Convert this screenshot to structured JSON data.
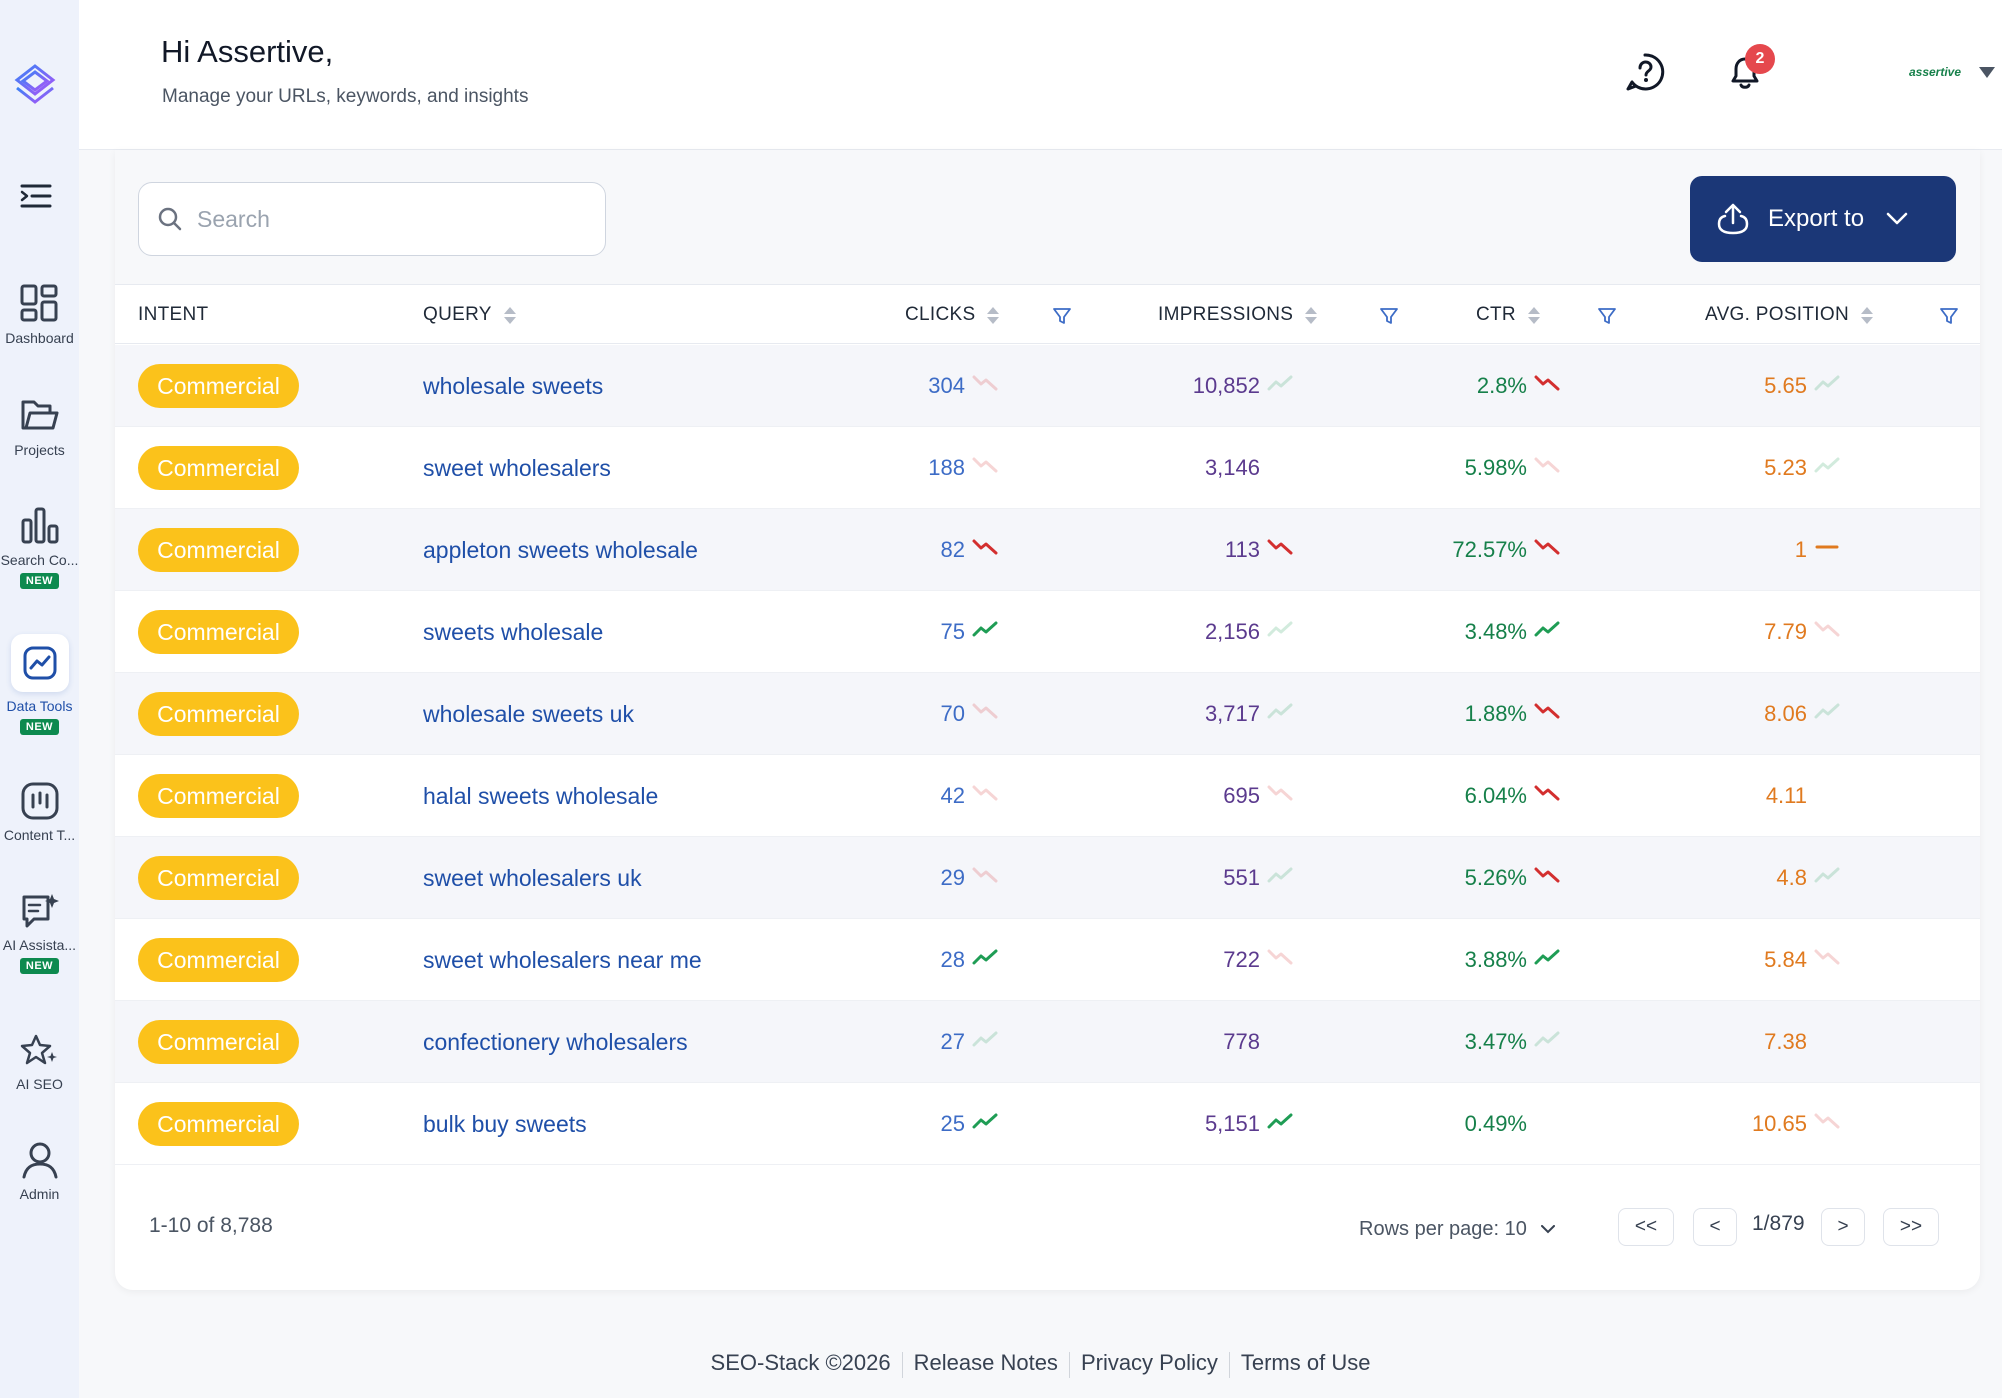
{
  "header": {
    "greeting": "Hi Assertive,",
    "subtitle": "Manage your URLs, keywords, and insights",
    "notification_count": "2",
    "account_label": "assertive"
  },
  "sidebar": {
    "items": [
      {
        "label": "Dashboard",
        "icon": "dashboard-icon",
        "badge": ""
      },
      {
        "label": "Projects",
        "icon": "folder-icon",
        "badge": ""
      },
      {
        "label": "Search Co...",
        "icon": "bar-chart-icon",
        "badge": "NEW"
      },
      {
        "label": "Data Tools",
        "icon": "trend-chart-icon",
        "badge": "NEW",
        "active": true
      },
      {
        "label": "Content T...",
        "icon": "content-icon",
        "badge": ""
      },
      {
        "label": "AI Assista...",
        "icon": "chat-sparkle-icon",
        "badge": "NEW"
      },
      {
        "label": "AI SEO",
        "icon": "star-sparkle-icon",
        "badge": ""
      },
      {
        "label": "Admin",
        "icon": "user-icon",
        "badge": ""
      }
    ]
  },
  "toolbar": {
    "search_placeholder": "Search",
    "export_label": "Export to"
  },
  "table": {
    "columns": [
      "INTENT",
      "QUERY",
      "CLICKS",
      "IMPRESSIONS",
      "CTR",
      "AVG. POSITION"
    ],
    "rows": [
      {
        "intent": "Commercial",
        "query": "wholesale sweets",
        "clicks": "304",
        "clicks_trend": "down-faint",
        "impressions": "10,852",
        "impressions_trend": "up-faint",
        "ctr": "2.8%",
        "ctr_trend": "down",
        "position": "5.65",
        "position_trend": "up-faint"
      },
      {
        "intent": "Commercial",
        "query": "sweet wholesalers",
        "clicks": "188",
        "clicks_trend": "down-faint",
        "impressions": "3,146",
        "impressions_trend": "none",
        "ctr": "5.98%",
        "ctr_trend": "down-faint",
        "position": "5.23",
        "position_trend": "up-faint"
      },
      {
        "intent": "Commercial",
        "query": "appleton sweets wholesale",
        "clicks": "82",
        "clicks_trend": "down",
        "impressions": "113",
        "impressions_trend": "down",
        "ctr": "72.57%",
        "ctr_trend": "down",
        "position": "1",
        "position_trend": "flat"
      },
      {
        "intent": "Commercial",
        "query": "sweets wholesale",
        "clicks": "75",
        "clicks_trend": "up",
        "impressions": "2,156",
        "impressions_trend": "up-faint",
        "ctr": "3.48%",
        "ctr_trend": "up",
        "position": "7.79",
        "position_trend": "down-faint"
      },
      {
        "intent": "Commercial",
        "query": "wholesale sweets uk",
        "clicks": "70",
        "clicks_trend": "down-faint",
        "impressions": "3,717",
        "impressions_trend": "up-faint",
        "ctr": "1.88%",
        "ctr_trend": "down",
        "position": "8.06",
        "position_trend": "up-faint"
      },
      {
        "intent": "Commercial",
        "query": "halal sweets wholesale",
        "clicks": "42",
        "clicks_trend": "down-faint",
        "impressions": "695",
        "impressions_trend": "down-faint",
        "ctr": "6.04%",
        "ctr_trend": "down",
        "position": "4.11",
        "position_trend": "none"
      },
      {
        "intent": "Commercial",
        "query": "sweet wholesalers uk",
        "clicks": "29",
        "clicks_trend": "down-faint",
        "impressions": "551",
        "impressions_trend": "up-faint",
        "ctr": "5.26%",
        "ctr_trend": "down",
        "position": "4.8",
        "position_trend": "up-faint"
      },
      {
        "intent": "Commercial",
        "query": "sweet wholesalers near me",
        "clicks": "28",
        "clicks_trend": "up",
        "impressions": "722",
        "impressions_trend": "down-faint",
        "ctr": "3.88%",
        "ctr_trend": "up",
        "position": "5.84",
        "position_trend": "down-faint"
      },
      {
        "intent": "Commercial",
        "query": "confectionery wholesalers",
        "clicks": "27",
        "clicks_trend": "up-faint",
        "impressions": "778",
        "impressions_trend": "none",
        "ctr": "3.47%",
        "ctr_trend": "up-faint",
        "position": "7.38",
        "position_trend": "none"
      },
      {
        "intent": "Commercial",
        "query": "bulk buy sweets",
        "clicks": "25",
        "clicks_trend": "up",
        "impressions": "5,151",
        "impressions_trend": "up",
        "ctr": "0.49%",
        "ctr_trend": "none",
        "position": "10.65",
        "position_trend": "down-faint"
      }
    ]
  },
  "pagination": {
    "range": "1-10 of 8,788",
    "rows_per_page": "Rows per page: 10",
    "page_indicator": "1/879",
    "first": "<<",
    "prev": "<",
    "next": ">",
    "last": ">>"
  },
  "footer": {
    "copyright": "SEO-Stack ©2026",
    "links": [
      "Release Notes",
      "Privacy Policy",
      "Terms of Use"
    ]
  },
  "colors": {
    "sidebar_bg": "#eef2fb",
    "primary": "#1b3777",
    "intent_pill": "#fbc21b",
    "trend_up": "#1f9d55",
    "trend_down": "#d32f2f",
    "clicks": "#3d6cc6",
    "impressions": "#5b3a8e",
    "ctr": "#16804a",
    "position": "#e07a1f"
  }
}
